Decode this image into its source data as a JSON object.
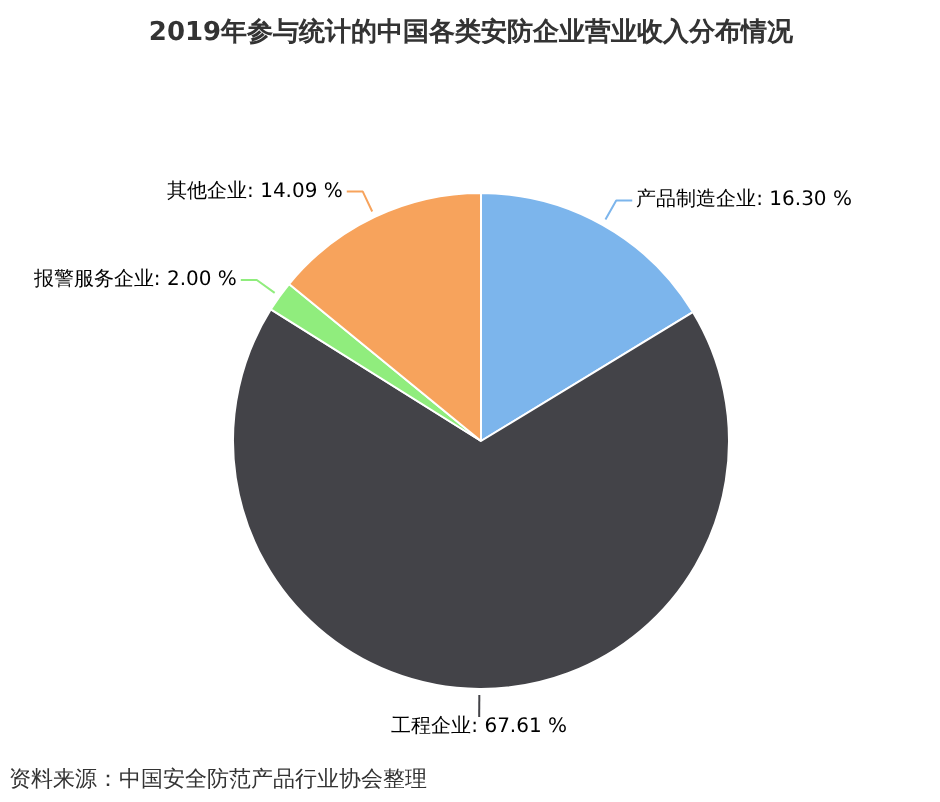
{
  "chart_data": {
    "type": "pie",
    "title": "2019年参与统计的中国各类安防企业营业收入分布情况",
    "categories": [
      "产品制造企业",
      "工程企业",
      "报警服务企业",
      "其他企业"
    ],
    "values": [
      16.3,
      67.61,
      2.0,
      14.09
    ],
    "value_labels": [
      "16.30 %",
      "67.61 %",
      "2.00 %",
      "14.09 %"
    ],
    "colors": [
      "#7cb5ec",
      "#434348",
      "#90ed7d",
      "#f7a35c"
    ],
    "annotations": [
      "资料来源：中国安全防范产品行业协会整理"
    ]
  }
}
